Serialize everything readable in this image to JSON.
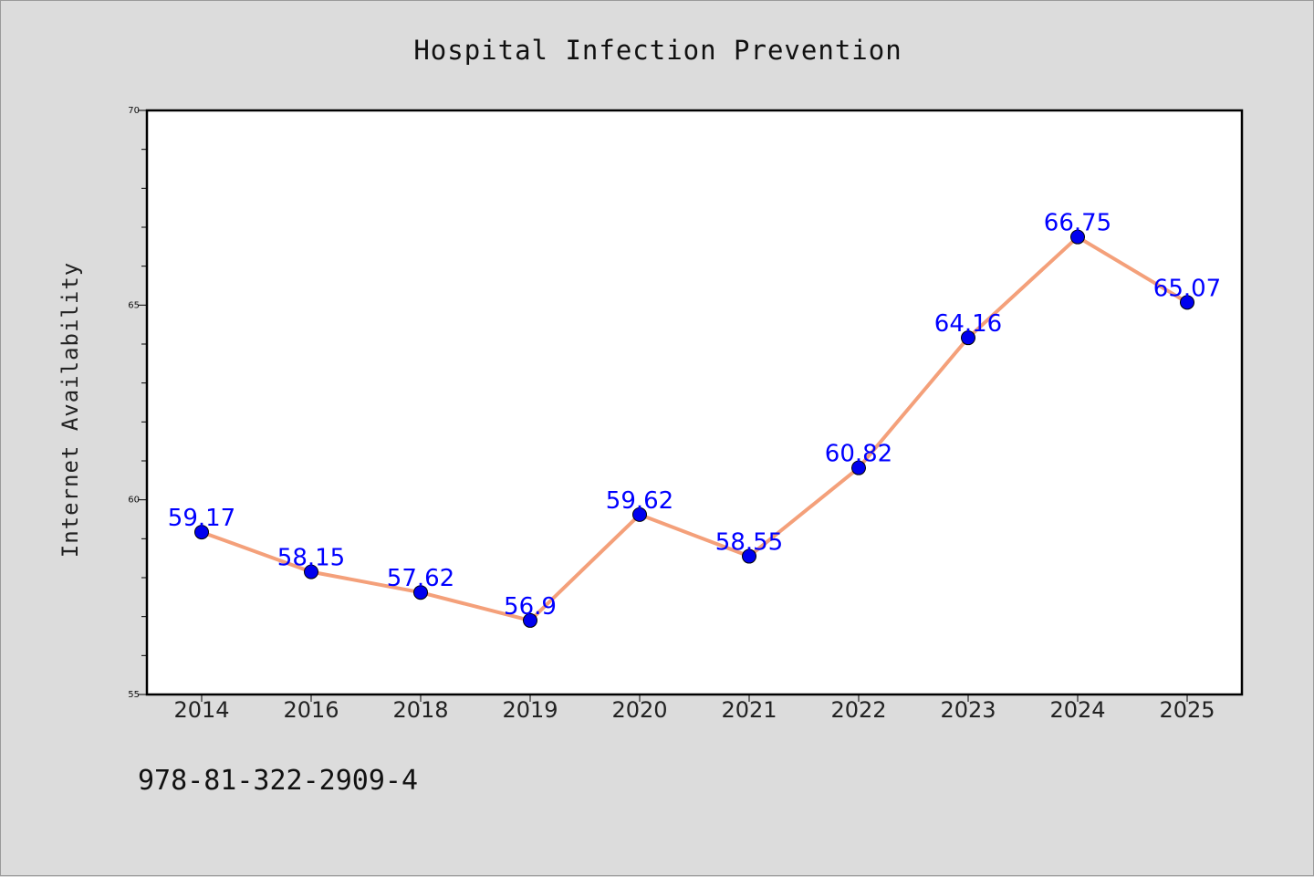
{
  "chart_data": {
    "type": "line",
    "title": "Hospital Infection Prevention",
    "xlabel": "",
    "ylabel": "Internet Availability",
    "categories": [
      "2014",
      "2016",
      "2018",
      "2019",
      "2020",
      "2021",
      "2022",
      "2023",
      "2024",
      "2025"
    ],
    "series": [
      {
        "values": [
          59.17,
          58.15,
          57.62,
          56.9,
          59.62,
          58.55,
          60.82,
          64.16,
          66.75,
          65.07
        ],
        "labels": [
          "59.17",
          "58.15",
          "57.62",
          "56.9",
          "59.62",
          "58.55",
          "60.82",
          "64.16",
          "66.75",
          "65.07"
        ],
        "line_color": "#f4a07a",
        "marker_color": "#0000ee",
        "label_color": "#0000ff"
      }
    ],
    "ylim": [
      55,
      70
    ],
    "yticks": [
      "55",
      "60",
      "65",
      "70"
    ],
    "grid": false,
    "legend": "none"
  },
  "footer": {
    "isbn": "978-81-322-2909-4"
  },
  "colors": {
    "background": "#dcdcdc",
    "plot_area": "#ffffff"
  }
}
